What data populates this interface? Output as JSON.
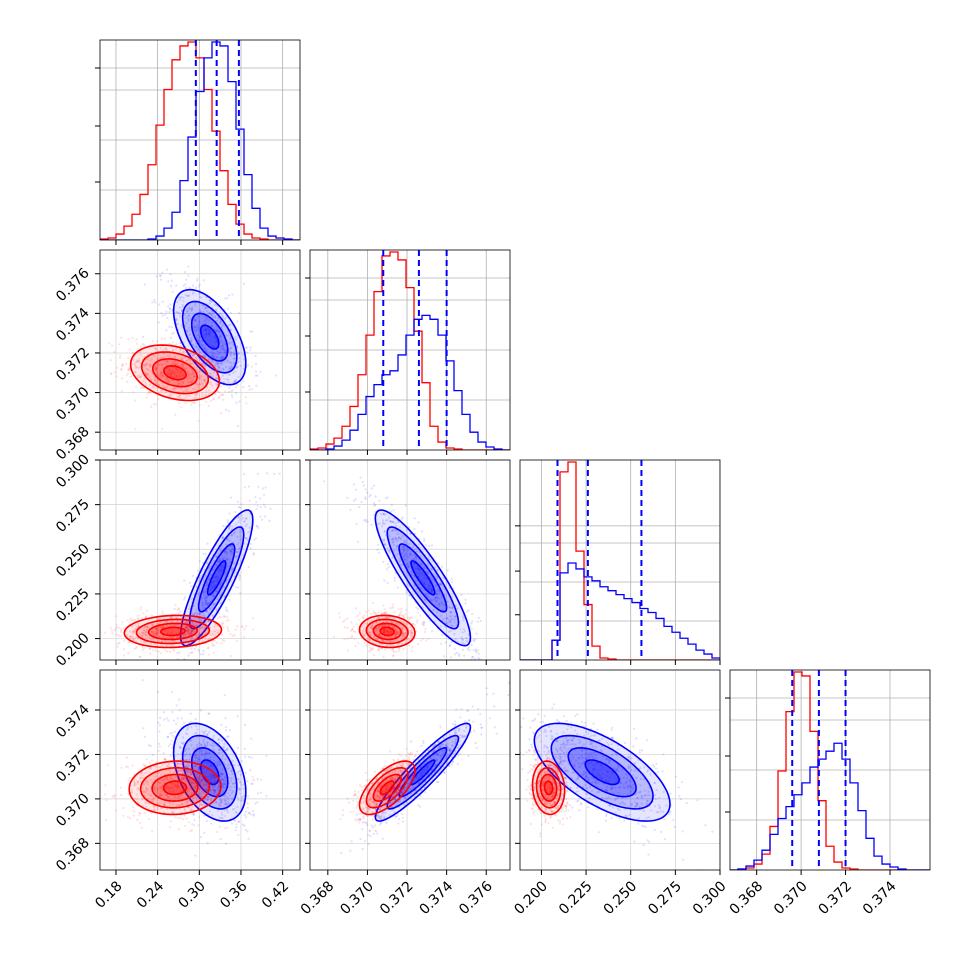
{
  "chart_data": {
    "type": "corner",
    "grid": true,
    "colors": {
      "a": "#ff0000",
      "b": "#0000ff"
    },
    "params": [
      {
        "ticks": [
          "0.18",
          "0.24",
          "0.30",
          "0.36",
          "0.42"
        ],
        "tick_vals": [
          0.18,
          0.24,
          0.3,
          0.36,
          0.42
        ],
        "range": [
          0.157,
          0.445
        ]
      },
      {
        "ticks": [
          "0.368",
          "0.370",
          "0.372",
          "0.374",
          "0.376"
        ],
        "tick_vals": [
          0.368,
          0.37,
          0.372,
          0.374,
          0.376
        ],
        "range": [
          0.3671,
          0.3772
        ]
      },
      {
        "ticks": [
          "0.200",
          "0.225",
          "0.250",
          "0.275",
          "0.300"
        ],
        "tick_vals": [
          0.2,
          0.225,
          0.25,
          0.275,
          0.3
        ],
        "range": [
          0.188,
          0.3
        ]
      },
      {
        "ticks": [
          "0.368",
          "0.370",
          "0.372",
          "0.374"
        ],
        "tick_vals": [
          0.368,
          0.37,
          0.372,
          0.374
        ],
        "range": [
          0.3668,
          0.3758
        ]
      }
    ],
    "quantiles_b": [
      [
        0.295,
        0.325,
        0.357
      ],
      [
        0.3708,
        0.3726,
        0.374
      ],
      [
        0.209,
        0.226,
        0.256
      ],
      [
        0.3696,
        0.3708,
        0.372
      ]
    ],
    "hist_a": [
      [
        0.5,
        1,
        3,
        7,
        13,
        23,
        38,
        58,
        76,
        91,
        98,
        100,
        92,
        76,
        55,
        35,
        18,
        8,
        3,
        1,
        0.5,
        0,
        0,
        0,
        0
      ],
      [
        0.5,
        1,
        3,
        6,
        12,
        22,
        38,
        58,
        80,
        98,
        100,
        96,
        82,
        60,
        34,
        12,
        4,
        1,
        0.5,
        0,
        0,
        0,
        0,
        0,
        0
      ],
      [
        0,
        0,
        0,
        0,
        10,
        95,
        100,
        55,
        28,
        7,
        1,
        0.5,
        0,
        0,
        0,
        0,
        0,
        0,
        0,
        0,
        0,
        0,
        0,
        0,
        0
      ],
      [
        0,
        0.5,
        1,
        3,
        8,
        22,
        50,
        80,
        100,
        98,
        70,
        35,
        12,
        4,
        1,
        0.5,
        0,
        0,
        0,
        0,
        0,
        0,
        0,
        0,
        0
      ]
    ],
    "hist_b": [
      [
        0,
        0,
        0,
        0,
        0,
        0,
        0.5,
        2,
        6,
        14,
        30,
        52,
        75,
        92,
        100,
        98,
        80,
        56,
        33,
        16,
        6,
        2,
        1,
        0.5,
        0
      ],
      [
        0,
        0,
        0.5,
        2,
        5,
        10,
        18,
        27,
        33,
        38,
        40,
        48,
        58,
        66,
        68,
        66,
        58,
        45,
        30,
        18,
        9,
        4,
        1.5,
        0.5,
        0
      ],
      [
        0,
        0,
        0,
        0,
        10,
        44,
        49,
        46,
        42,
        40,
        37,
        35,
        33,
        31,
        29,
        26,
        24,
        21,
        17,
        14,
        11,
        8,
        5,
        3,
        1
      ],
      [
        0,
        0.5,
        2,
        5,
        10,
        18,
        26,
        32,
        38,
        44,
        52,
        56,
        60,
        64,
        56,
        44,
        30,
        16,
        7,
        3,
        1.5,
        0.5,
        0,
        0,
        0
      ]
    ],
    "pairs": [
      {
        "i": 1,
        "j": 0,
        "a": {
          "mx": 0.265,
          "my": 0.371,
          "sx": 0.032,
          "sy": 0.0007,
          "rho": -0.3
        },
        "b": {
          "mx": 0.315,
          "my": 0.3728,
          "sx": 0.026,
          "sy": 0.0012,
          "rho": -0.55
        }
      },
      {
        "i": 2,
        "j": 0,
        "a": {
          "mx": 0.262,
          "my": 0.204,
          "sx": 0.035,
          "sy": 0.0045,
          "rho": 0.1
        },
        "b": {
          "mx": 0.325,
          "my": 0.234,
          "sx": 0.026,
          "sy": 0.019,
          "rho": 0.85
        }
      },
      {
        "i": 2,
        "j": 1,
        "a": {
          "mx": 0.371,
          "my": 0.204,
          "sx": 0.0007,
          "sy": 0.0045,
          "rho": -0.1
        },
        "b": {
          "mx": 0.3728,
          "my": 0.234,
          "sx": 0.0012,
          "sy": 0.019,
          "rho": -0.88
        }
      },
      {
        "i": 3,
        "j": 0,
        "a": {
          "mx": 0.265,
          "my": 0.3705,
          "sx": 0.033,
          "sy": 0.0006,
          "rho": 0.05
        },
        "b": {
          "mx": 0.315,
          "my": 0.3712,
          "sx": 0.026,
          "sy": 0.0011,
          "rho": -0.4
        }
      },
      {
        "i": 3,
        "j": 1,
        "a": {
          "mx": 0.371,
          "my": 0.3705,
          "sx": 0.0007,
          "sy": 0.0006,
          "rho": 0.65
        },
        "b": {
          "mx": 0.3728,
          "my": 0.3712,
          "sx": 0.0012,
          "sy": 0.0011,
          "rho": 0.92
        }
      },
      {
        "i": 3,
        "j": 2,
        "a": {
          "mx": 0.204,
          "my": 0.3705,
          "sx": 0.0045,
          "sy": 0.0006,
          "rho": -0.1
        },
        "b": {
          "mx": 0.234,
          "my": 0.3712,
          "sx": 0.019,
          "sy": 0.0011,
          "rho": -0.65
        }
      }
    ]
  }
}
